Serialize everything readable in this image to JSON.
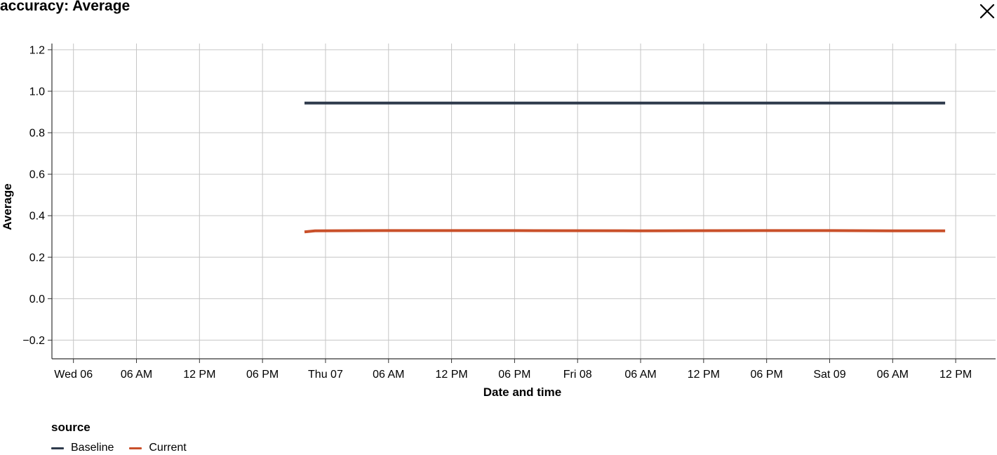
{
  "header": {
    "title": "accuracy: Average",
    "close_icon": "close-icon"
  },
  "chart_data": {
    "type": "line",
    "title": "accuracy: Average",
    "xlabel": "Date and time",
    "ylabel": "Average",
    "x_range": [
      "Tue 05 21:57",
      "Sat 09 15:48"
    ],
    "ylim": [
      -0.29,
      1.23
    ],
    "y_ticks": [
      -0.2,
      0.0,
      0.2,
      0.4,
      0.6,
      0.8,
      1.0,
      1.2
    ],
    "y_tick_labels": [
      "−0.2",
      "0.0",
      "0.2",
      "0.4",
      "0.6",
      "0.8",
      "1.0",
      "1.2"
    ],
    "x_ticks": [
      {
        "t": "Wed 06 00:00",
        "label": "Wed 06"
      },
      {
        "t": "Wed 06 06:00",
        "label": "06 AM"
      },
      {
        "t": "Wed 06 12:00",
        "label": "12 PM"
      },
      {
        "t": "Wed 06 18:00",
        "label": "06 PM"
      },
      {
        "t": "Thu 07 00:00",
        "label": "Thu 07"
      },
      {
        "t": "Thu 07 06:00",
        "label": "06 AM"
      },
      {
        "t": "Thu 07 12:00",
        "label": "12 PM"
      },
      {
        "t": "Thu 07 18:00",
        "label": "06 PM"
      },
      {
        "t": "Fri 08 00:00",
        "label": "Fri 08"
      },
      {
        "t": "Fri 08 06:00",
        "label": "06 AM"
      },
      {
        "t": "Fri 08 12:00",
        "label": "12 PM"
      },
      {
        "t": "Fri 08 18:00",
        "label": "06 PM"
      },
      {
        "t": "Sat 09 00:00",
        "label": "Sat 09"
      },
      {
        "t": "Sat 09 06:00",
        "label": "06 AM"
      },
      {
        "t": "Sat 09 12:00",
        "label": "12 PM"
      }
    ],
    "grid": true,
    "legend": {
      "title": "source",
      "placement": "bottom-left"
    },
    "series": [
      {
        "name": "Baseline",
        "color": "#2f3b4c",
        "points": [
          {
            "t": "Wed 06 22:00",
            "y": 0.943
          },
          {
            "t": "Sat 09 11:00",
            "y": 0.943
          }
        ]
      },
      {
        "name": "Current",
        "color": "#c9502a",
        "points": [
          {
            "t": "Wed 06 22:00",
            "y": 0.322
          },
          {
            "t": "Wed 06 23:00",
            "y": 0.327
          },
          {
            "t": "Thu 07 06:00",
            "y": 0.328
          },
          {
            "t": "Thu 07 18:00",
            "y": 0.328
          },
          {
            "t": "Fri 08 06:00",
            "y": 0.327
          },
          {
            "t": "Fri 08 18:00",
            "y": 0.328
          },
          {
            "t": "Sat 09 00:00",
            "y": 0.328
          },
          {
            "t": "Sat 09 06:00",
            "y": 0.327
          },
          {
            "t": "Sat 09 11:00",
            "y": 0.327
          }
        ]
      }
    ]
  }
}
